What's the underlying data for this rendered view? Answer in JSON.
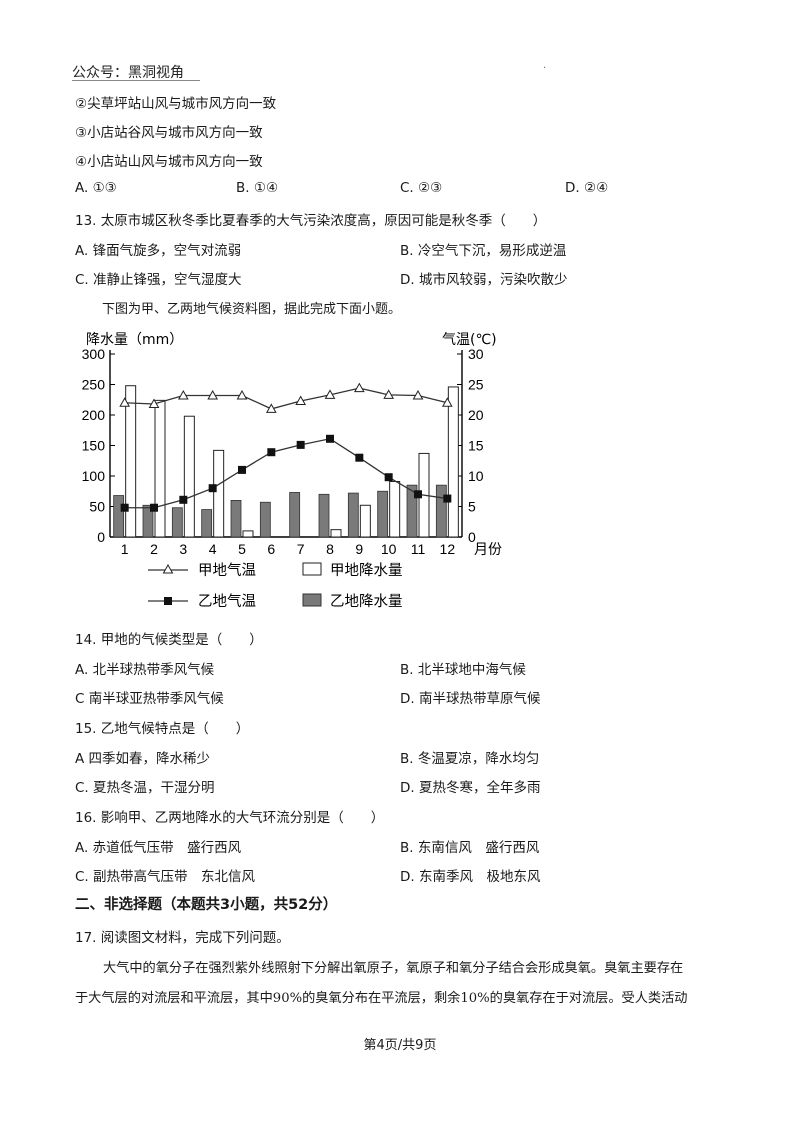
{
  "watermark": "公众号：黑洞视角",
  "corner_mark": "·",
  "q12": {
    "items": [
      "②尖草坪站山风与城市风方向一致",
      "③小店站谷风与城市风方向一致",
      "④小店站山风与城市风方向一致"
    ],
    "options": [
      "A. ①③",
      "B. ①④",
      "C. ②③",
      "D. ②④"
    ]
  },
  "q13": {
    "stem": "13. 太原市城区秋冬季比夏春季的大气污染浓度高，原因可能是秋冬季（　　）",
    "options": [
      "A. 锋面气旋多，空气对流弱",
      "B. 冷空气下沉，易形成逆温",
      "C. 准静止锋强，空气湿度大",
      "D. 城市风较弱，污染吹散少"
    ]
  },
  "intro": "下图为甲、乙两地气候资料图，据此完成下面小题。",
  "chart_data": {
    "type": "bar+line",
    "ylabel_left": "降水量（mm）",
    "ylabel_right": "气温(℃)",
    "xlabel": "月份",
    "categories": [
      "1",
      "2",
      "3",
      "4",
      "5",
      "6",
      "7",
      "8",
      "9",
      "10",
      "11",
      "12"
    ],
    "y_left_ticks": [
      "0",
      "50",
      "100",
      "150",
      "200",
      "250",
      "300"
    ],
    "y_right_ticks": [
      "0",
      "5",
      "10",
      "15",
      "20",
      "25",
      "30"
    ],
    "ylim_left": [
      0,
      300
    ],
    "ylim_right": [
      0,
      30
    ],
    "series": [
      {
        "name": "甲地气温",
        "kind": "line",
        "axis": "right",
        "marker": "triangle",
        "values": [
          22,
          21.8,
          23.2,
          23.2,
          23.2,
          21,
          22.3,
          23.3,
          24.4,
          23.3,
          23.2,
          22
        ]
      },
      {
        "name": "甲地降水量",
        "kind": "bar",
        "axis": "left",
        "fill": "#ffffff",
        "values": [
          248,
          224,
          198,
          142,
          10,
          0,
          0,
          12,
          52,
          91,
          137,
          246
        ]
      },
      {
        "name": "乙地气温",
        "kind": "line",
        "axis": "right",
        "marker": "square",
        "values": [
          4.8,
          4.8,
          6.1,
          8,
          11,
          13.9,
          15.1,
          16.1,
          13,
          9.8,
          7,
          6.3
        ]
      },
      {
        "name": "乙地降水量",
        "kind": "bar",
        "axis": "left",
        "fill": "#7a7a7a",
        "values": [
          68,
          52,
          48,
          45,
          60,
          57,
          73,
          70,
          72,
          75,
          85,
          85
        ]
      }
    ]
  },
  "legend": {
    "jia_temp": "甲地气温",
    "jia_precip": "甲地降水量",
    "yi_temp": "乙地气温",
    "yi_precip": "乙地降水量"
  },
  "q14": {
    "stem": "14. 甲地的气候类型是（　　）",
    "options": [
      "A. 北半球热带季风气候",
      "B. 北半球地中海气候",
      "C  南半球亚热带季风气候",
      "D. 南半球热带草原气候"
    ]
  },
  "q15": {
    "stem": "15. 乙地气候特点是（　　）",
    "options": [
      "A  四季如春，降水稀少",
      "B. 冬温夏凉，降水均匀",
      "C. 夏热冬温，干湿分明",
      "D. 夏热冬寒，全年多雨"
    ]
  },
  "q16": {
    "stem": "16. 影响甲、乙两地降水的大气环流分别是（　　）",
    "options": [
      "A. 赤道低气压带　盛行西风",
      "B. 东南信风　盛行西风",
      "C. 副热带高气压带　东北信风",
      "D. 东南季风　极地东风"
    ]
  },
  "section2": "二、非选择题（本题共3小题，共52分）",
  "q17": {
    "stem": "17. 阅读图文材料，完成下列问题。",
    "para1": "大气中的氧分子在强烈紫外线照射下分解出氧原子，氧原子和氧分子结合会形成臭氧。臭氧主要存在",
    "para2": "于大气层的对流层和平流层，其中90%的臭氧分布在平流层，剩余10%的臭氧存在于对流层。受人类活动"
  },
  "footer": "第4页/共9页"
}
